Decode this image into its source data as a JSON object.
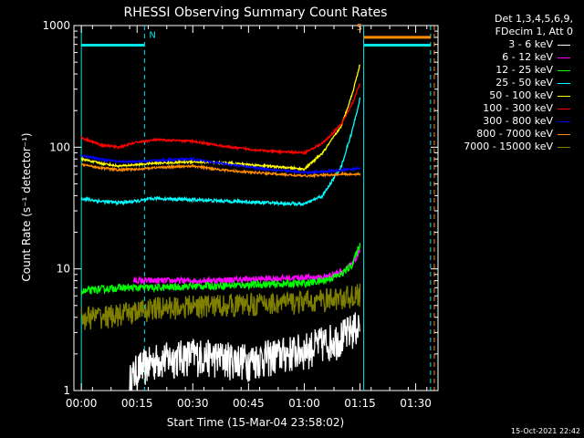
{
  "chart_data": {
    "type": "line",
    "title": "RHESSI Observing Summary Count Rates",
    "xlabel": "Start Time (15-Mar-04 23:58:02)",
    "ylabel": "Count Rate (s⁻¹ detector⁻¹)",
    "yscale": "log",
    "ylim": [
      1,
      1000
    ],
    "xlim_minutes": [
      -2,
      96
    ],
    "x_ticks": [
      "00:00",
      "00:15",
      "00:30",
      "00:45",
      "01:00",
      "01:15",
      "01:30"
    ],
    "x_tick_minutes": [
      0,
      15,
      30,
      45,
      60,
      75,
      90
    ],
    "y_ticks": [
      "1",
      "10",
      "100",
      "1000"
    ],
    "y_tick_values": [
      1,
      10,
      100,
      1000
    ],
    "legend_position": "right",
    "legend_header": [
      "Det 1,3,4,5,6,9,",
      "FDecim 1, Att 0"
    ],
    "flags": [
      {
        "label": "N",
        "color": "#00e5e5",
        "x_start_min": 0,
        "x_end_min": 17,
        "level": 690
      },
      {
        "label": "S",
        "color": "#ff8c00",
        "x_start_min": 76,
        "x_end_min": 94,
        "level": 800
      },
      {
        "label": "",
        "color": "#00e5e5",
        "x_start_min": 76,
        "x_end_min": 94,
        "level": 690
      }
    ],
    "vlines": [
      {
        "minute": 0,
        "color": "#00e5e5",
        "style": "solid"
      },
      {
        "minute": 17,
        "color": "#00e5e5",
        "style": "dashed"
      },
      {
        "minute": 76,
        "color": "#00e5e5",
        "style": "solid"
      },
      {
        "minute": 94,
        "color": "#00e5e5",
        "style": "dashed"
      },
      {
        "minute": 95,
        "color": "#ff8c00",
        "style": "dashed"
      }
    ],
    "series": [
      {
        "name": "3 - 6 keV",
        "color": "#ffffff",
        "noise": 0.35,
        "x": [
          13,
          15,
          20,
          30,
          45,
          60,
          65,
          70,
          75
        ],
        "y": [
          1.2,
          1.5,
          1.8,
          2,
          1.8,
          2.2,
          2.5,
          2.8,
          3.5
        ]
      },
      {
        "name": "6 - 12 keV",
        "color": "#ff00ff",
        "noise": 0.06,
        "x": [
          14,
          20,
          30,
          45,
          60,
          65,
          70,
          73,
          75
        ],
        "y": [
          8,
          8,
          8,
          8.2,
          8.5,
          8.5,
          9.5,
          11,
          14
        ]
      },
      {
        "name": "12 - 25 keV",
        "color": "#00ff00",
        "noise": 0.07,
        "x": [
          0,
          5,
          10,
          15,
          20,
          30,
          45,
          60,
          65,
          70,
          73,
          75
        ],
        "y": [
          6.5,
          6.8,
          7,
          7,
          7,
          7.2,
          7.4,
          7.6,
          8,
          9,
          11,
          16
        ]
      },
      {
        "name": "25 - 50 keV",
        "color": "#00ffff",
        "noise": 0.03,
        "x": [
          0,
          5,
          10,
          15,
          20,
          30,
          40,
          50,
          60,
          65,
          70,
          73,
          75
        ],
        "y": [
          38,
          36,
          35,
          36,
          38,
          37,
          36,
          35,
          34,
          40,
          70,
          140,
          250
        ]
      },
      {
        "name": "50 - 100 keV",
        "color": "#ffff00",
        "noise": 0.02,
        "x": [
          0,
          5,
          10,
          15,
          20,
          30,
          40,
          50,
          60,
          65,
          70,
          73,
          75
        ],
        "y": [
          80,
          74,
          70,
          72,
          74,
          76,
          74,
          70,
          66,
          90,
          150,
          280,
          480
        ]
      },
      {
        "name": "100 - 300 keV",
        "color": "#ff0000",
        "noise": 0.02,
        "x": [
          0,
          5,
          10,
          15,
          20,
          30,
          40,
          50,
          60,
          65,
          70,
          73,
          75
        ],
        "y": [
          120,
          105,
          100,
          110,
          115,
          112,
          100,
          93,
          90,
          108,
          155,
          230,
          340
        ]
      },
      {
        "name": "300 - 800 keV",
        "color": "#0000ff",
        "noise": 0.02,
        "x": [
          0,
          5,
          10,
          15,
          20,
          30,
          40,
          50,
          60,
          65,
          70,
          75
        ],
        "y": [
          85,
          80,
          76,
          76,
          78,
          80,
          72,
          66,
          62,
          63,
          65,
          67
        ]
      },
      {
        "name": "800 - 7000 keV",
        "color": "#ff8c00",
        "noise": 0.02,
        "x": [
          0,
          5,
          10,
          15,
          20,
          30,
          40,
          50,
          60,
          65,
          70,
          75
        ],
        "y": [
          72,
          68,
          65,
          66,
          68,
          70,
          64,
          61,
          58,
          59,
          60,
          60
        ]
      },
      {
        "name": "7000 - 15000 keV",
        "color": "#808000",
        "noise": 0.22,
        "x": [
          0,
          10,
          20,
          30,
          45,
          60,
          65,
          70,
          75
        ],
        "y": [
          4,
          4.2,
          4.8,
          5,
          5.2,
          5.4,
          5.6,
          5.8,
          6.2
        ]
      }
    ]
  },
  "footer": {
    "date_stamp": "15-Oct-2021 22:42"
  }
}
